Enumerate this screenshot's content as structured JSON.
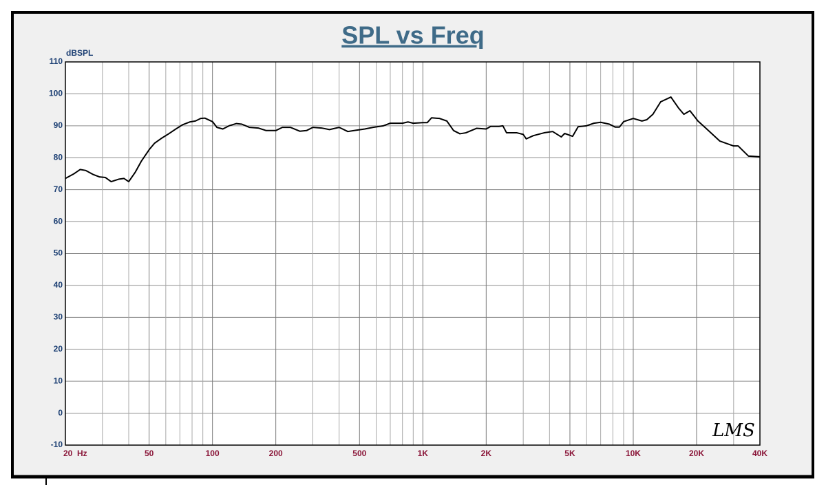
{
  "chart_data": {
    "type": "line",
    "title": "SPL vs Freq",
    "y_label": "dBSPL",
    "watermark": "LMS",
    "log_x": true,
    "grid": true,
    "xlim": [
      20,
      40000
    ],
    "ylim": [
      -10,
      110
    ],
    "xticks": [
      {
        "value": 20,
        "label": "20  Hz"
      },
      50,
      100,
      200,
      500,
      {
        "value": 1000,
        "label": "1K"
      },
      {
        "value": 2000,
        "label": "2K"
      },
      {
        "value": 5000,
        "label": "5K"
      },
      {
        "value": 10000,
        "label": "10K"
      },
      {
        "value": 20000,
        "label": "20K"
      },
      {
        "value": 40000,
        "label": "40K"
      }
    ],
    "minor_xticks": [
      30,
      40,
      60,
      70,
      80,
      90,
      300,
      400,
      600,
      700,
      800,
      900,
      3000,
      4000,
      6000,
      7000,
      8000,
      9000,
      30000
    ],
    "yticks": [
      110,
      100,
      90,
      80,
      70,
      60,
      50,
      40,
      30,
      20,
      10,
      0,
      -10
    ],
    "x": [
      20,
      22,
      23.5,
      25,
      27,
      29,
      31,
      33,
      36,
      38,
      40,
      43,
      46,
      50,
      53,
      57,
      62,
      67,
      72,
      78,
      83,
      88,
      92,
      97,
      100,
      105,
      112,
      120,
      130,
      138,
      150,
      165,
      180,
      200,
      215,
      235,
      260,
      280,
      300,
      330,
      360,
      400,
      440,
      480,
      530,
      580,
      650,
      700,
      800,
      850,
      900,
      1000,
      1050,
      1100,
      1200,
      1300,
      1400,
      1500,
      1600,
      1800,
      2000,
      2100,
      2300,
      2400,
      2500,
      2800,
      3000,
      3100,
      3350,
      3770,
      4140,
      4550,
      4720,
      5150,
      5470,
      6000,
      6500,
      7000,
      7700,
      8200,
      8600,
      9000,
      10000,
      11000,
      11600,
      12400,
      13500,
      15100,
      16400,
      17400,
      18600,
      20300,
      22100,
      25800,
      29900,
      31500,
      35300,
      40000
    ],
    "series": [
      {
        "color": "#000000",
        "values": [
          73.5,
          75,
          76.3,
          76,
          74.8,
          74,
          73.8,
          72.5,
          73.3,
          73.5,
          72.5,
          75.5,
          79,
          82.5,
          84.5,
          86,
          87.5,
          89,
          90.3,
          91.2,
          91.5,
          92.3,
          92.4,
          91.7,
          91.3,
          89.5,
          89,
          90,
          90.7,
          90.5,
          89.5,
          89.3,
          88.5,
          88.5,
          89.5,
          89.5,
          88.3,
          88.5,
          89.5,
          89.3,
          88.8,
          89.5,
          88.2,
          88.6,
          89,
          89.5,
          90,
          90.8,
          90.8,
          91.2,
          90.8,
          91,
          91,
          92.5,
          92.3,
          91.5,
          88.5,
          87.5,
          87.8,
          89.2,
          89,
          89.8,
          89.8,
          90,
          87.8,
          87.8,
          87.3,
          85.9,
          86.9,
          87.8,
          88.2,
          86.5,
          87.6,
          86.7,
          89.7,
          90,
          90.8,
          91.1,
          90.5,
          89.6,
          89.6,
          91.3,
          92.3,
          91.5,
          91.9,
          93.6,
          97.5,
          99,
          95.6,
          93.6,
          94.7,
          91.5,
          89.3,
          85.2,
          83.7,
          83.7,
          80.5,
          80.3
        ]
      }
    ]
  }
}
